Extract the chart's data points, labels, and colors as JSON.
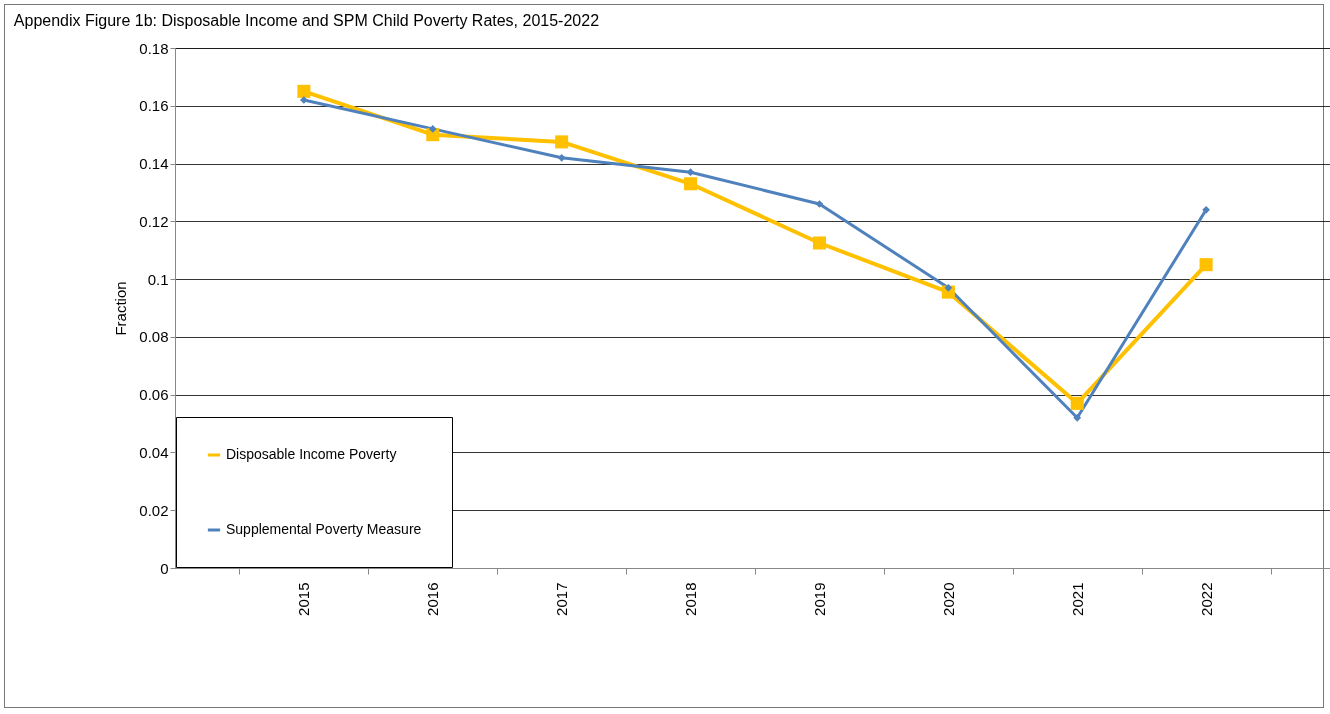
{
  "chart_data": {
    "type": "line",
    "title": "Appendix Figure 1b: Disposable Income and SPM Child Poverty Rates, 2015-2022",
    "ylabel": "Fraction",
    "categories": [
      "2015",
      "2016",
      "2017",
      "2018",
      "2019",
      "2020",
      "2021",
      "2022"
    ],
    "series": [
      {
        "name": "Disposable Income Poverty",
        "color": "#ffc000",
        "marker": "square",
        "values": [
          0.165,
          0.15,
          0.1475,
          0.133,
          0.1125,
          0.0955,
          0.057,
          0.105
        ]
      },
      {
        "name": "Supplemental Poverty Measure",
        "color": "#4f81bd",
        "marker": "diamond",
        "values": [
          0.162,
          0.152,
          0.142,
          0.137,
          0.126,
          0.097,
          0.052,
          0.124
        ]
      }
    ],
    "ylim": [
      0,
      0.18
    ],
    "yticks": [
      0,
      0.02,
      0.04,
      0.06,
      0.08,
      0.1,
      0.12,
      0.14,
      0.16,
      0.18
    ],
    "grid": "y",
    "legend": "bottom left"
  }
}
